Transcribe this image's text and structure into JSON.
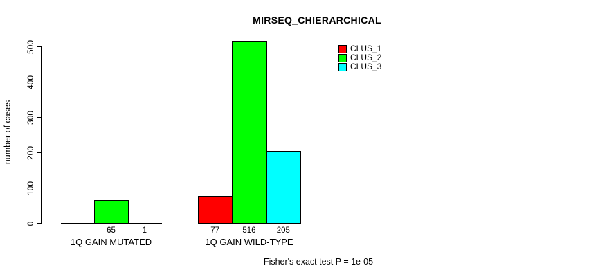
{
  "chart": {
    "title": "MIRSEQ_CHIERARCHICAL",
    "y_axis_label": "number of cases",
    "footer_annotation": "Fisher's exact test P = 1e-05",
    "background_color": "#FFFFFF",
    "axis_color": "#000000"
  },
  "legend": {
    "entries": [
      {
        "label": "CLUS_1",
        "color": "#FF0000"
      },
      {
        "label": "CLUS_2",
        "color": "#00FF00"
      },
      {
        "label": "CLUS_3",
        "color": "#00FFFF"
      }
    ]
  },
  "chart_data": {
    "type": "bar",
    "title": "MIRSEQ_CHIERARCHICAL",
    "xlabel": "",
    "ylabel": "number of cases",
    "ylim": [
      0,
      500
    ],
    "yticks": [
      0,
      100,
      200,
      300,
      400,
      500
    ],
    "grid": false,
    "legend_position": "top-right",
    "categories": [
      "1Q GAIN MUTATED",
      "1Q GAIN WILD-TYPE"
    ],
    "series": [
      {
        "name": "CLUS_1",
        "color": "#FF0000",
        "values": [
          0,
          77
        ]
      },
      {
        "name": "CLUS_2",
        "color": "#00FF00",
        "values": [
          65,
          516
        ]
      },
      {
        "name": "CLUS_3",
        "color": "#00FFFF",
        "values": [
          1,
          205
        ]
      }
    ],
    "bar_value_labels": [
      [
        "",
        "65",
        "1"
      ],
      [
        "77",
        "516",
        "205"
      ]
    ],
    "annotation": "Fisher's exact test P = 1e-05"
  }
}
